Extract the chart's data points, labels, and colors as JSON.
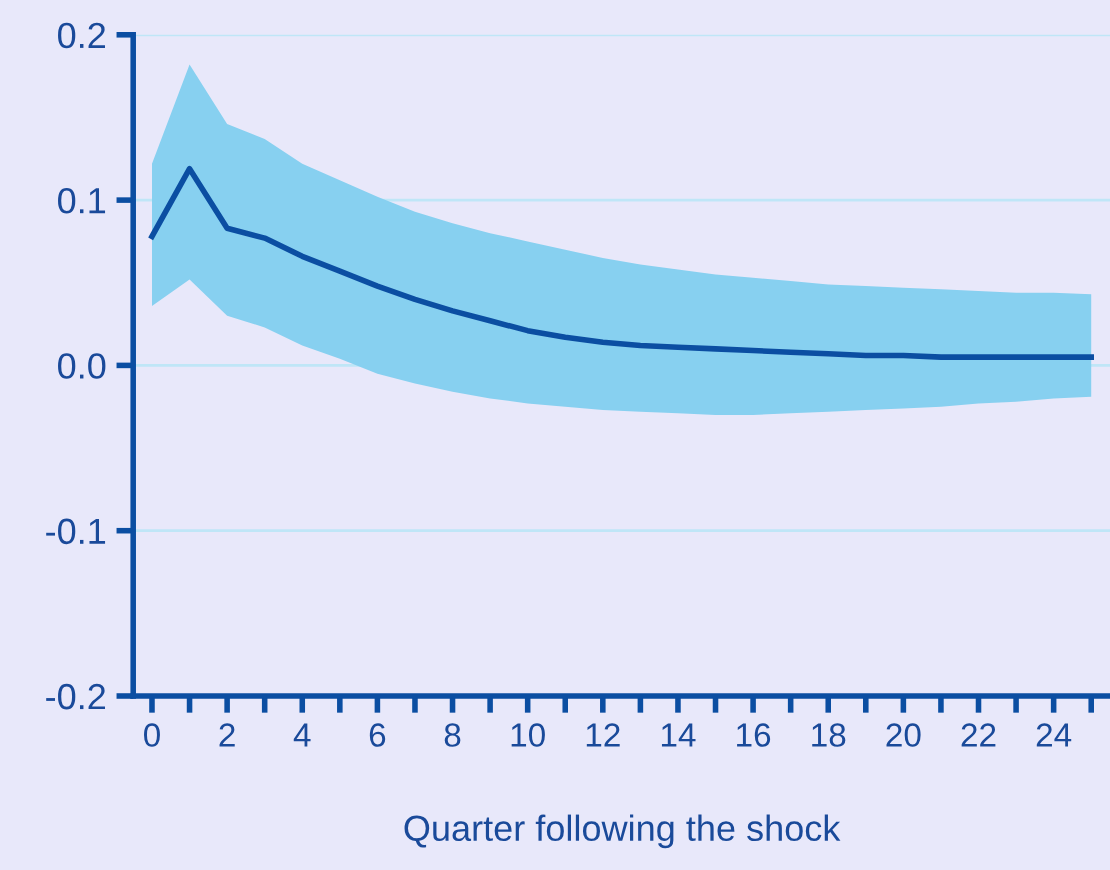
{
  "chart_data": {
    "type": "line",
    "xlabel": "Quarter following the shock",
    "x": [
      0,
      1,
      2,
      3,
      4,
      5,
      6,
      7,
      8,
      9,
      10,
      11,
      12,
      13,
      14,
      15,
      16,
      17,
      18,
      19,
      20,
      21,
      22,
      23,
      24,
      25
    ],
    "series": [
      {
        "color": "#0b4ea2",
        "values": [
          0.078,
          0.119,
          0.083,
          0.077,
          0.066,
          0.057,
          0.048,
          0.04,
          0.033,
          0.027,
          0.021,
          0.017,
          0.014,
          0.012,
          0.011,
          0.01,
          0.009,
          0.008,
          0.007,
          0.006,
          0.006,
          0.005,
          0.005,
          0.005,
          0.005,
          0.005
        ],
        "lower": [
          0.036,
          0.052,
          0.03,
          0.023,
          0.012,
          0.004,
          -0.005,
          -0.011,
          -0.016,
          -0.02,
          -0.023,
          -0.025,
          -0.027,
          -0.028,
          -0.029,
          -0.03,
          -0.03,
          -0.029,
          -0.028,
          -0.027,
          -0.026,
          -0.025,
          -0.023,
          -0.022,
          -0.02,
          -0.019
        ],
        "upper": [
          0.122,
          0.182,
          0.146,
          0.137,
          0.122,
          0.112,
          0.102,
          0.093,
          0.086,
          0.08,
          0.075,
          0.07,
          0.065,
          0.061,
          0.058,
          0.055,
          0.053,
          0.051,
          0.049,
          0.048,
          0.047,
          0.046,
          0.045,
          0.044,
          0.044,
          0.043
        ]
      }
    ],
    "xlim": [
      -0.5,
      25.5
    ],
    "ylim": [
      -0.2,
      0.2
    ],
    "xticks": [
      0,
      {
        "value": 1,
        "label": null
      },
      2,
      {
        "value": 3,
        "label": null
      },
      4,
      {
        "value": 5,
        "label": null
      },
      6,
      {
        "value": 7,
        "label": null
      },
      8,
      {
        "value": 9,
        "label": null
      },
      10,
      {
        "value": 11,
        "label": null
      },
      12,
      {
        "value": 13,
        "label": null
      },
      14,
      {
        "value": 15,
        "label": null
      },
      16,
      {
        "value": 17,
        "label": null
      },
      18,
      {
        "value": 19,
        "label": null
      },
      20,
      {
        "value": 21,
        "label": null
      },
      22,
      {
        "value": 23,
        "label": null
      },
      24,
      {
        "value": 25,
        "label": null
      }
    ],
    "yticks": [
      {
        "value": 0.2,
        "label": "0.2"
      },
      {
        "value": 0.1,
        "label": "0.1"
      },
      {
        "value": 0,
        "label": "0.0"
      },
      {
        "value": -0.1,
        "label": "-0.1"
      },
      {
        "value": -0.2,
        "label": "-0.2"
      }
    ],
    "grid": "y",
    "marker": "none",
    "line_style": "solid"
  }
}
